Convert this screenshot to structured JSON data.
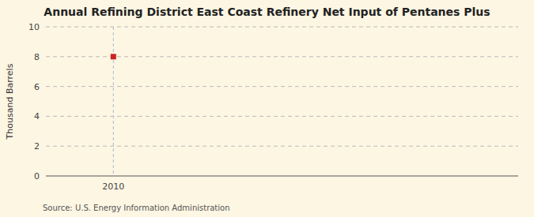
{
  "chart_data": {
    "type": "scatter",
    "title": "Annual Refining District East Coast Refinery Net Input of Pentanes Plus",
    "y_label": "Thousand Barrels",
    "source": "Source: U.S. Energy Information Administration",
    "x": [
      2010
    ],
    "values": [
      8
    ],
    "color": "#cc2222",
    "marker": "square",
    "xlim": [
      2009.5,
      2013.0
    ],
    "xticks": [
      2010
    ],
    "ylim": [
      0,
      10
    ],
    "yticks": [
      0,
      2,
      4,
      6,
      8,
      10
    ],
    "grid": true
  }
}
